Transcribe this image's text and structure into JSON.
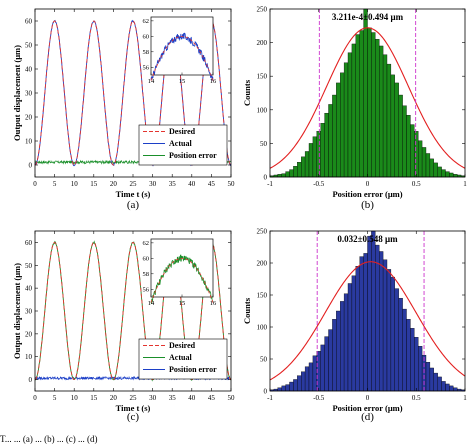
{
  "caption_fragment": "T... ... (a) ... (b) ... (c) ... (d)",
  "chart_data": [
    {
      "id": "a",
      "type": "line",
      "panel_label": "(a)",
      "xlabel": "Time t (s)",
      "ylabel": "Output displacement (μm)",
      "xlim": [
        0,
        50
      ],
      "ylim": [
        -5,
        65
      ],
      "xticks": [
        0,
        5,
        10,
        15,
        20,
        25,
        30,
        35,
        40,
        45,
        50
      ],
      "yticks": [
        0,
        10,
        20,
        30,
        40,
        50,
        60
      ],
      "grid": false,
      "legend": {
        "placement": "bottom-right",
        "entries": [
          "Desired",
          "Actual",
          "Position error"
        ]
      },
      "signal": {
        "amplitude": 60,
        "offset": 30,
        "period_s": 10,
        "min_at_s": 0
      },
      "error_level": 1.2,
      "error_noise": 0.6,
      "inset": {
        "xlim": [
          14,
          16
        ],
        "ylim": [
          55,
          62.5
        ],
        "xticks": [
          14,
          15,
          16
        ],
        "yticks": [
          56,
          58,
          60,
          62
        ]
      },
      "series": [
        {
          "name": "Desired",
          "color": "#e3342f",
          "style": "dashed"
        },
        {
          "name": "Actual",
          "color": "#1c3fc7",
          "style": "solid"
        },
        {
          "name": "Position error",
          "color": "#1a8f2a",
          "style": "solid"
        }
      ]
    },
    {
      "id": "b",
      "type": "bar",
      "panel_label": "(b)",
      "xlabel": "Position error (μm)",
      "ylabel": "Counts",
      "annotation": "3.211e-4±0.494 μm",
      "mean": 0.0003211,
      "std": 0.494,
      "bar_color": "#1a8a1a",
      "fit_color": "#e32020",
      "vline_color": "#cc33cc",
      "vlines": [
        -0.494,
        0.494
      ],
      "xlim": [
        -1,
        1
      ],
      "ylim": [
        0,
        250
      ],
      "xticks": [
        -1,
        -0.5,
        0,
        0.5,
        1
      ],
      "yticks": [
        0,
        50,
        100,
        150,
        200,
        250
      ],
      "bin_centers": [
        -0.98,
        -0.94,
        -0.9,
        -0.86,
        -0.82,
        -0.78,
        -0.74,
        -0.7,
        -0.66,
        -0.62,
        -0.58,
        -0.54,
        -0.5,
        -0.46,
        -0.42,
        -0.38,
        -0.34,
        -0.3,
        -0.26,
        -0.22,
        -0.18,
        -0.14,
        -0.1,
        -0.06,
        -0.02,
        0.02,
        0.06,
        0.1,
        0.14,
        0.18,
        0.22,
        0.26,
        0.3,
        0.34,
        0.38,
        0.42,
        0.46,
        0.5,
        0.54,
        0.58,
        0.62,
        0.66,
        0.7,
        0.74,
        0.78,
        0.82,
        0.86,
        0.9,
        0.94,
        0.98
      ],
      "counts": [
        2,
        3,
        4,
        5,
        8,
        11,
        16,
        22,
        30,
        38,
        50,
        60,
        68,
        80,
        95,
        108,
        122,
        140,
        155,
        170,
        185,
        198,
        212,
        218,
        250,
        222,
        215,
        205,
        195,
        182,
        168,
        152,
        140,
        122,
        106,
        92,
        78,
        68,
        54,
        44,
        35,
        27,
        21,
        15,
        11,
        8,
        6,
        4,
        3,
        2
      ],
      "fit_peak": 222
    },
    {
      "id": "c",
      "type": "line",
      "panel_label": "(c)",
      "xlabel": "Time t (s)",
      "ylabel": "Output displacement (μm)",
      "xlim": [
        0,
        50
      ],
      "ylim": [
        -5,
        65
      ],
      "xticks": [
        0,
        5,
        10,
        15,
        20,
        25,
        30,
        35,
        40,
        45,
        50
      ],
      "yticks": [
        0,
        10,
        20,
        30,
        40,
        50,
        60
      ],
      "grid": false,
      "legend": {
        "placement": "bottom-right",
        "entries": [
          "Desired",
          "Actual",
          "Position error"
        ]
      },
      "signal": {
        "amplitude": 60,
        "offset": 30,
        "period_s": 10,
        "min_at_s": 0
      },
      "error_level": 0.6,
      "error_noise": 0.6,
      "inset": {
        "xlim": [
          14,
          16
        ],
        "ylim": [
          55,
          62.5
        ],
        "xticks": [
          14,
          15,
          16
        ],
        "yticks": [
          56,
          58,
          60,
          62
        ]
      },
      "series": [
        {
          "name": "Desired",
          "color": "#e3342f",
          "style": "dashed"
        },
        {
          "name": "Actual",
          "color": "#1a8f2a",
          "style": "solid"
        },
        {
          "name": "Position error",
          "color": "#1c3fc7",
          "style": "solid"
        }
      ]
    },
    {
      "id": "d",
      "type": "bar",
      "panel_label": "(d)",
      "xlabel": "Position error (μm)",
      "ylabel": "Counts",
      "annotation": "0.032±0.548 μm",
      "mean": 0.032,
      "std": 0.548,
      "bar_color": "#2a3aa0",
      "fit_color": "#e32020",
      "vline_color": "#cc33cc",
      "vlines": [
        -0.516,
        0.58
      ],
      "xlim": [
        -1,
        1
      ],
      "ylim": [
        0,
        250
      ],
      "xticks": [
        -1,
        -0.5,
        0,
        0.5,
        1
      ],
      "yticks": [
        0,
        50,
        100,
        150,
        200,
        250
      ],
      "bin_centers": [
        -0.98,
        -0.94,
        -0.9,
        -0.86,
        -0.82,
        -0.78,
        -0.74,
        -0.7,
        -0.66,
        -0.62,
        -0.58,
        -0.54,
        -0.5,
        -0.46,
        -0.42,
        -0.38,
        -0.34,
        -0.3,
        -0.26,
        -0.22,
        -0.18,
        -0.14,
        -0.1,
        -0.06,
        -0.02,
        0.02,
        0.06,
        0.1,
        0.14,
        0.18,
        0.22,
        0.26,
        0.3,
        0.34,
        0.38,
        0.42,
        0.46,
        0.5,
        0.54,
        0.58,
        0.62,
        0.66,
        0.7,
        0.74,
        0.78,
        0.82,
        0.86,
        0.9,
        0.94,
        0.98
      ],
      "counts": [
        2,
        3,
        5,
        8,
        10,
        14,
        18,
        24,
        30,
        38,
        44,
        55,
        62,
        72,
        85,
        96,
        112,
        125,
        140,
        152,
        168,
        180,
        195,
        210,
        215,
        242,
        250,
        228,
        218,
        205,
        190,
        178,
        160,
        145,
        128,
        112,
        98,
        84,
        70,
        56,
        45,
        36,
        28,
        22,
        15,
        11,
        8,
        5,
        3,
        2
      ],
      "fit_peak": 202
    }
  ]
}
